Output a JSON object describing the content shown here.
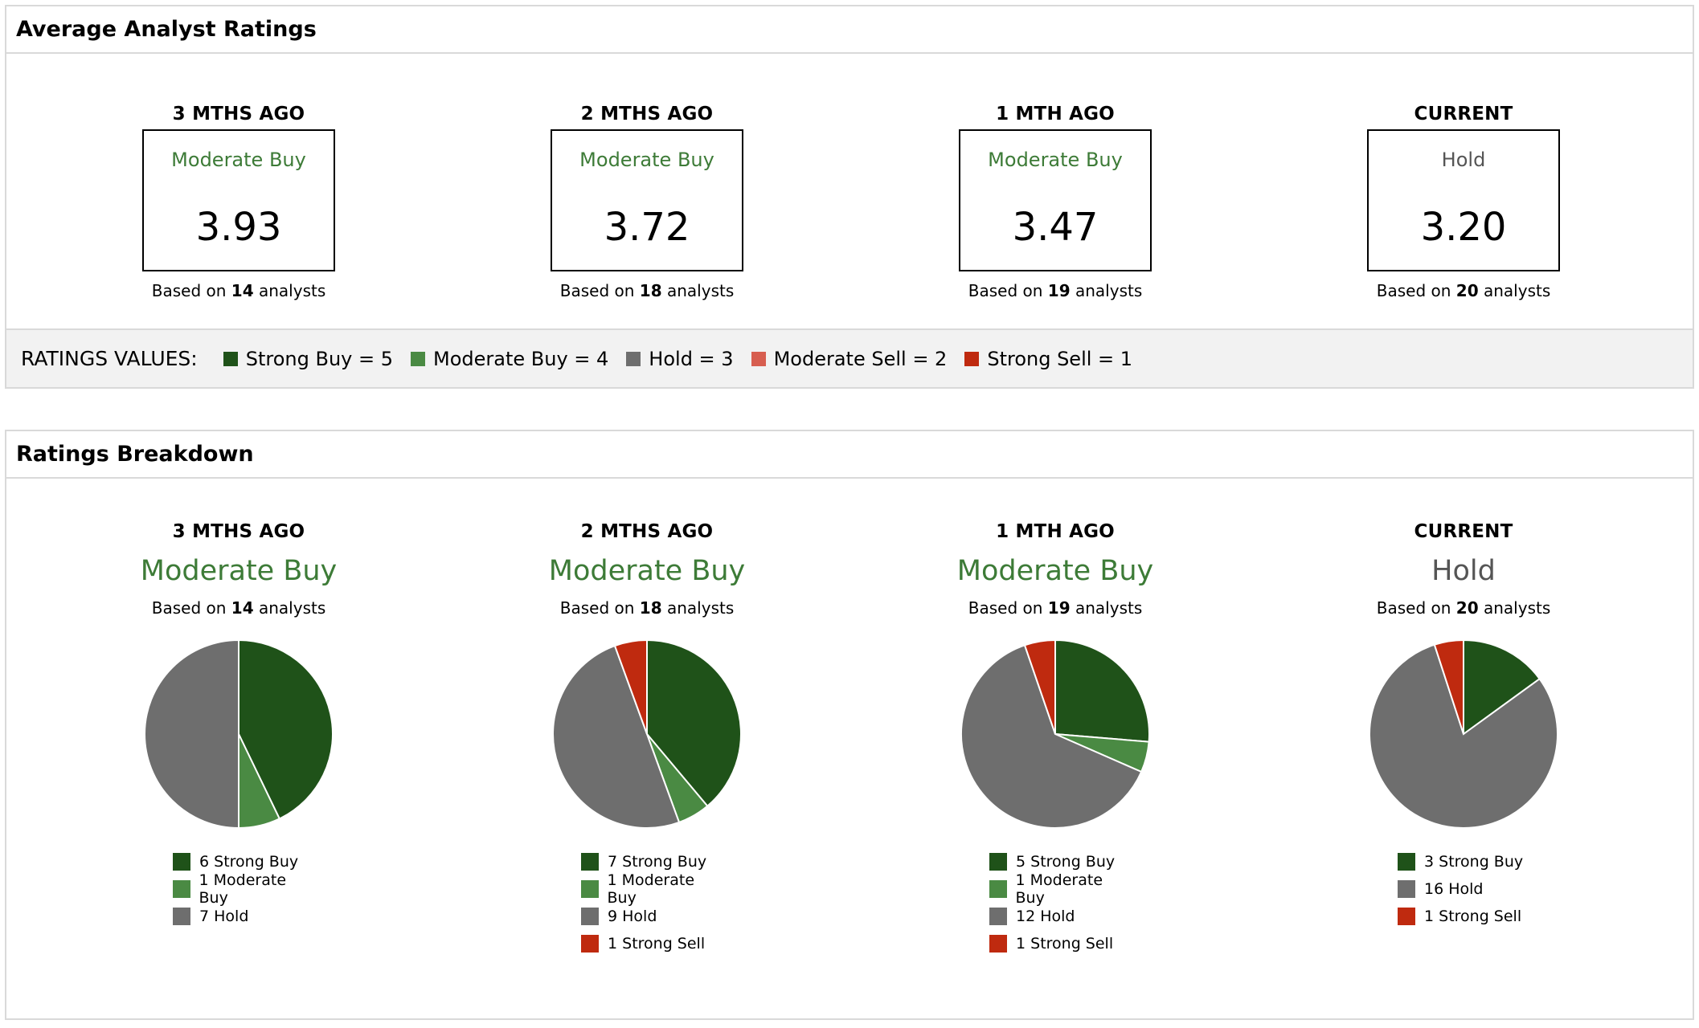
{
  "colors": {
    "strong_buy": "#1f5219",
    "moderate_buy": "#4a8a43",
    "hold": "#6e6e6e",
    "moderate_sell": "#d75e50",
    "strong_sell": "#bf2a0f",
    "label_buy": "#3d7b37",
    "label_hold": "#555555"
  },
  "avg_panel": {
    "title": "Average Analyst Ratings",
    "periods": [
      {
        "title": "3 MTHS AGO",
        "label": "Moderate Buy",
        "score": "3.93",
        "based_prefix": "Based on ",
        "count": "14",
        "based_suffix": " analysts"
      },
      {
        "title": "2 MTHS AGO",
        "label": "Moderate Buy",
        "score": "3.72",
        "based_prefix": "Based on ",
        "count": "18",
        "based_suffix": " analysts"
      },
      {
        "title": "1 MTH AGO",
        "label": "Moderate Buy",
        "score": "3.47",
        "based_prefix": "Based on ",
        "count": "19",
        "based_suffix": " analysts"
      },
      {
        "title": "CURRENT",
        "label": "Hold",
        "score": "3.20",
        "based_prefix": "Based on ",
        "count": "20",
        "based_suffix": " analysts"
      }
    ],
    "ratings_values": {
      "title": "RATINGS VALUES:",
      "items": [
        {
          "label": "Strong Buy = 5"
        },
        {
          "label": "Moderate Buy = 4"
        },
        {
          "label": "Hold = 3"
        },
        {
          "label": "Moderate Sell = 2"
        },
        {
          "label": "Strong Sell = 1"
        }
      ]
    }
  },
  "breakdown_panel": {
    "title": "Ratings Breakdown",
    "periods": [
      {
        "title": "3 MTHS AGO",
        "label": "Moderate Buy",
        "based_prefix": "Based on ",
        "count": "14",
        "based_suffix": " analysts",
        "legend": [
          "6 Strong Buy",
          "1 Moderate Buy",
          "7 Hold"
        ]
      },
      {
        "title": "2 MTHS AGO",
        "label": "Moderate Buy",
        "based_prefix": "Based on ",
        "count": "18",
        "based_suffix": " analysts",
        "legend": [
          "7 Strong Buy",
          "1 Moderate Buy",
          "9 Hold",
          "1 Strong Sell"
        ]
      },
      {
        "title": "1 MTH AGO",
        "label": "Moderate Buy",
        "based_prefix": "Based on ",
        "count": "19",
        "based_suffix": " analysts",
        "legend": [
          "5 Strong Buy",
          "1 Moderate Buy",
          "12 Hold",
          "1 Strong Sell"
        ]
      },
      {
        "title": "CURRENT",
        "label": "Hold",
        "based_prefix": "Based on ",
        "count": "20",
        "based_suffix": " analysts",
        "legend": [
          "3 Strong Buy",
          "16 Hold",
          "1 Strong Sell"
        ]
      }
    ]
  },
  "chart_data": [
    {
      "type": "pie",
      "title": "3 MTHS AGO",
      "categories": [
        "Strong Buy",
        "Moderate Buy",
        "Hold"
      ],
      "values": [
        6,
        1,
        7
      ]
    },
    {
      "type": "pie",
      "title": "2 MTHS AGO",
      "categories": [
        "Strong Buy",
        "Moderate Buy",
        "Hold",
        "Strong Sell"
      ],
      "values": [
        7,
        1,
        9,
        1
      ]
    },
    {
      "type": "pie",
      "title": "1 MTH AGO",
      "categories": [
        "Strong Buy",
        "Moderate Buy",
        "Hold",
        "Strong Sell"
      ],
      "values": [
        5,
        1,
        12,
        1
      ]
    },
    {
      "type": "pie",
      "title": "CURRENT",
      "categories": [
        "Strong Buy",
        "Hold",
        "Strong Sell"
      ],
      "values": [
        3,
        16,
        1
      ]
    }
  ]
}
